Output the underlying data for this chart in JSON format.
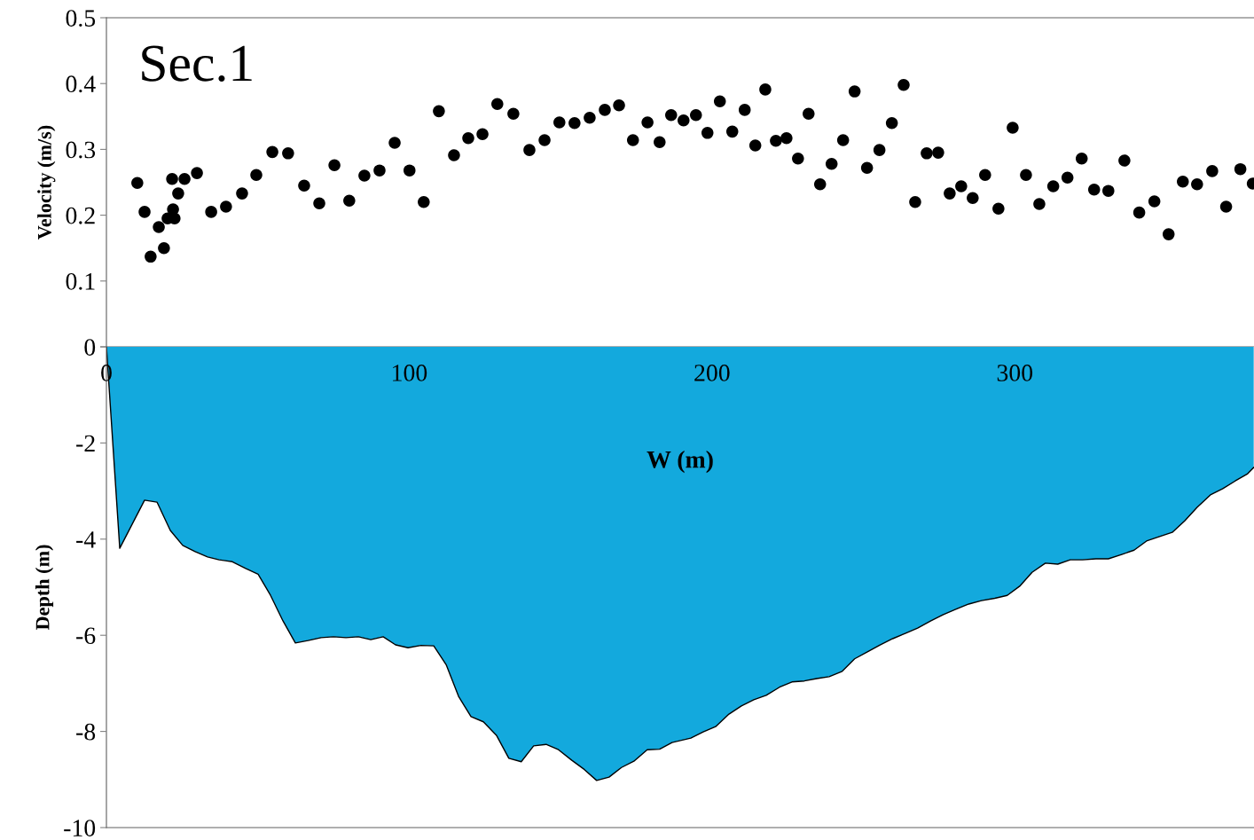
{
  "chart_data": [
    {
      "type": "scatter",
      "title": "Sec.1",
      "ylabel": "Velocity (m/s)",
      "xlim": [
        0,
        379
      ],
      "ylim": [
        0,
        0.5
      ],
      "yticks": [
        0,
        0.1,
        0.2,
        0.3,
        0.4,
        0.5
      ],
      "tick_labels": "y",
      "marker": "circle",
      "series": [
        {
          "color": "#000000",
          "x": [
            10.2,
            12.6,
            14.6,
            17.3,
            19.0,
            20.2,
            21.7,
            22.0,
            22.5,
            23.7,
            25.8,
            29.9,
            34.6,
            39.5,
            44.8,
            49.5,
            54.8,
            60.0,
            65.3,
            70.3,
            75.3,
            80.2,
            85.2,
            90.2,
            95.2,
            100.1,
            104.8,
            109.8,
            114.8,
            119.5,
            124.2,
            129.1,
            134.4,
            139.7,
            144.7,
            149.6,
            154.6,
            159.6,
            164.6,
            169.3,
            173.9,
            178.7,
            182.7,
            186.5,
            190.6,
            194.7,
            198.5,
            202.6,
            206.7,
            210.8,
            214.3,
            217.6,
            221.1,
            224.6,
            228.4,
            231.9,
            235.7,
            239.5,
            243.3,
            247.1,
            251.2,
            255.3,
            259.4,
            263.3,
            267.1,
            270.9,
            274.7,
            278.5,
            282.3,
            286.1,
            290.2,
            294.6,
            299.3,
            303.7,
            308.1,
            312.7,
            317.4,
            322.1,
            326.2,
            330.9,
            336.2,
            341.1,
            346.1,
            350.8,
            355.5,
            360.2,
            365.2,
            369.8,
            374.5,
            378.6
          ],
          "values": [
            0.249,
            0.205,
            0.137,
            0.182,
            0.15,
            0.195,
            0.255,
            0.209,
            0.195,
            0.233,
            0.255,
            0.264,
            0.205,
            0.213,
            0.233,
            0.261,
            0.296,
            0.294,
            0.245,
            0.218,
            0.276,
            0.222,
            0.26,
            0.268,
            0.31,
            0.268,
            0.22,
            0.358,
            0.291,
            0.317,
            0.323,
            0.369,
            0.354,
            0.299,
            0.314,
            0.341,
            0.34,
            0.348,
            0.36,
            0.367,
            0.314,
            0.341,
            0.311,
            0.352,
            0.344,
            0.352,
            0.325,
            0.373,
            0.327,
            0.36,
            0.306,
            0.391,
            0.313,
            0.317,
            0.286,
            0.354,
            0.247,
            0.278,
            0.314,
            0.388,
            0.272,
            0.299,
            0.34,
            0.398,
            0.22,
            0.294,
            0.295,
            0.233,
            0.244,
            0.226,
            0.261,
            0.21,
            0.333,
            0.261,
            0.217,
            0.244,
            0.257,
            0.286,
            0.239,
            0.237,
            0.283,
            0.204,
            0.221,
            0.171,
            0.251,
            0.247,
            0.267,
            0.213,
            0.27,
            0.248
          ]
        }
      ]
    },
    {
      "type": "area",
      "xlabel": "W (m)",
      "ylabel": "Depth (m)",
      "xlim": [
        0,
        379
      ],
      "xticks": [
        0,
        100,
        200,
        300
      ],
      "ylim": [
        -10,
        0
      ],
      "yticks": [
        {
          "value": 0,
          "label": null
        },
        -2,
        -4,
        -6,
        -8,
        -10
      ],
      "series": [
        {
          "color": "#13a9dd",
          "x": [
            0,
            4.4,
            12.6,
            16.7,
            21.1,
            25.2,
            29.3,
            33.4,
            37.2,
            41.6,
            46,
            50.1,
            54.2,
            58.3,
            62.4,
            66.6,
            70.9,
            75,
            79.1,
            83.2,
            87.3,
            91.4,
            95.5,
            99.6,
            103.9,
            108.1,
            112.2,
            116.3,
            120.4,
            124.5,
            128.8,
            132.9,
            137.0,
            141.1,
            145.2,
            149.3,
            153.7,
            157.8,
            161.9,
            166,
            170.1,
            174.2,
            178.6,
            182.7,
            186.8,
            193,
            197.1,
            201.2,
            205.6,
            209.7,
            213.8,
            217.9,
            222.3,
            226.4,
            230.5,
            234.6,
            238.7,
            243,
            247.1,
            251.2,
            255.5,
            259.7,
            263.8,
            267.9,
            272.3,
            276.4,
            280.5,
            284.8,
            289,
            293.4,
            297.5,
            301.6,
            305.7,
            310.1,
            314.2,
            318.3,
            322.4,
            326.8,
            330.9,
            335.3,
            339.4,
            343.5,
            347.6,
            352,
            356.1,
            360.2,
            364.6,
            368.7,
            372.8,
            376.9,
            378.9
          ],
          "values": [
            0,
            -4.19,
            -3.19,
            -3.23,
            -3.82,
            -4.13,
            -4.26,
            -4.37,
            -4.43,
            -4.47,
            -4.61,
            -4.73,
            -5.17,
            -5.7,
            -6.16,
            -6.11,
            -6.05,
            -6.03,
            -6.05,
            -6.03,
            -6.09,
            -6.03,
            -6.2,
            -6.26,
            -6.21,
            -6.22,
            -6.61,
            -7.27,
            -7.69,
            -7.8,
            -8.08,
            -8.56,
            -8.63,
            -8.3,
            -8.27,
            -8.38,
            -8.6,
            -8.79,
            -9.02,
            -8.95,
            -8.75,
            -8.62,
            -8.38,
            -8.37,
            -8.23,
            -8.14,
            -8.01,
            -7.9,
            -7.64,
            -7.47,
            -7.34,
            -7.25,
            -7.08,
            -6.97,
            -6.95,
            -6.9,
            -6.86,
            -6.75,
            -6.49,
            -6.35,
            -6.2,
            -6.07,
            -5.96,
            -5.85,
            -5.7,
            -5.57,
            -5.46,
            -5.35,
            -5.28,
            -5.23,
            -5.17,
            -4.98,
            -4.69,
            -4.5,
            -4.52,
            -4.43,
            -4.43,
            -4.41,
            -4.41,
            -4.32,
            -4.23,
            -4.04,
            -3.95,
            -3.86,
            -3.62,
            -3.34,
            -3.08,
            -2.95,
            -2.79,
            -2.64,
            -2.51
          ]
        }
      ]
    }
  ]
}
